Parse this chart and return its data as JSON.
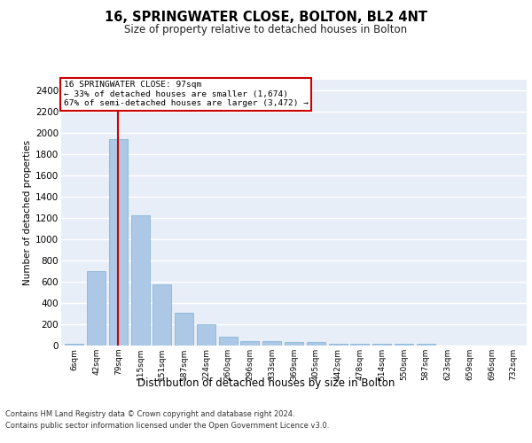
{
  "title": "16, SPRINGWATER CLOSE, BOLTON, BL2 4NT",
  "subtitle": "Size of property relative to detached houses in Bolton",
  "xlabel": "Distribution of detached houses by size in Bolton",
  "ylabel": "Number of detached properties",
  "categories": [
    "6sqm",
    "42sqm",
    "79sqm",
    "115sqm",
    "151sqm",
    "187sqm",
    "224sqm",
    "260sqm",
    "296sqm",
    "333sqm",
    "369sqm",
    "405sqm",
    "442sqm",
    "478sqm",
    "514sqm",
    "550sqm",
    "587sqm",
    "623sqm",
    "659sqm",
    "696sqm",
    "732sqm"
  ],
  "values": [
    15,
    700,
    1940,
    1225,
    575,
    305,
    200,
    85,
    45,
    40,
    35,
    30,
    20,
    20,
    20,
    15,
    20,
    0,
    0,
    0,
    0
  ],
  "bar_color": "#adc8e6",
  "bar_edge_color": "#7aafd4",
  "highlight_bar_index": 2,
  "highlight_line_color": "#cc0000",
  "annotation_line1": "16 SPRINGWATER CLOSE: 97sqm",
  "annotation_line2": "← 33% of detached houses are smaller (1,674)",
  "annotation_line3": "67% of semi-detached houses are larger (3,472) →",
  "annotation_box_edgecolor": "#cc0000",
  "ylim": [
    0,
    2500
  ],
  "yticks": [
    0,
    200,
    400,
    600,
    800,
    1000,
    1200,
    1400,
    1600,
    1800,
    2000,
    2200,
    2400
  ],
  "background_color": "#e8eef8",
  "grid_color": "#ffffff",
  "footer_line1": "Contains HM Land Registry data © Crown copyright and database right 2024.",
  "footer_line2": "Contains public sector information licensed under the Open Government Licence v3.0."
}
